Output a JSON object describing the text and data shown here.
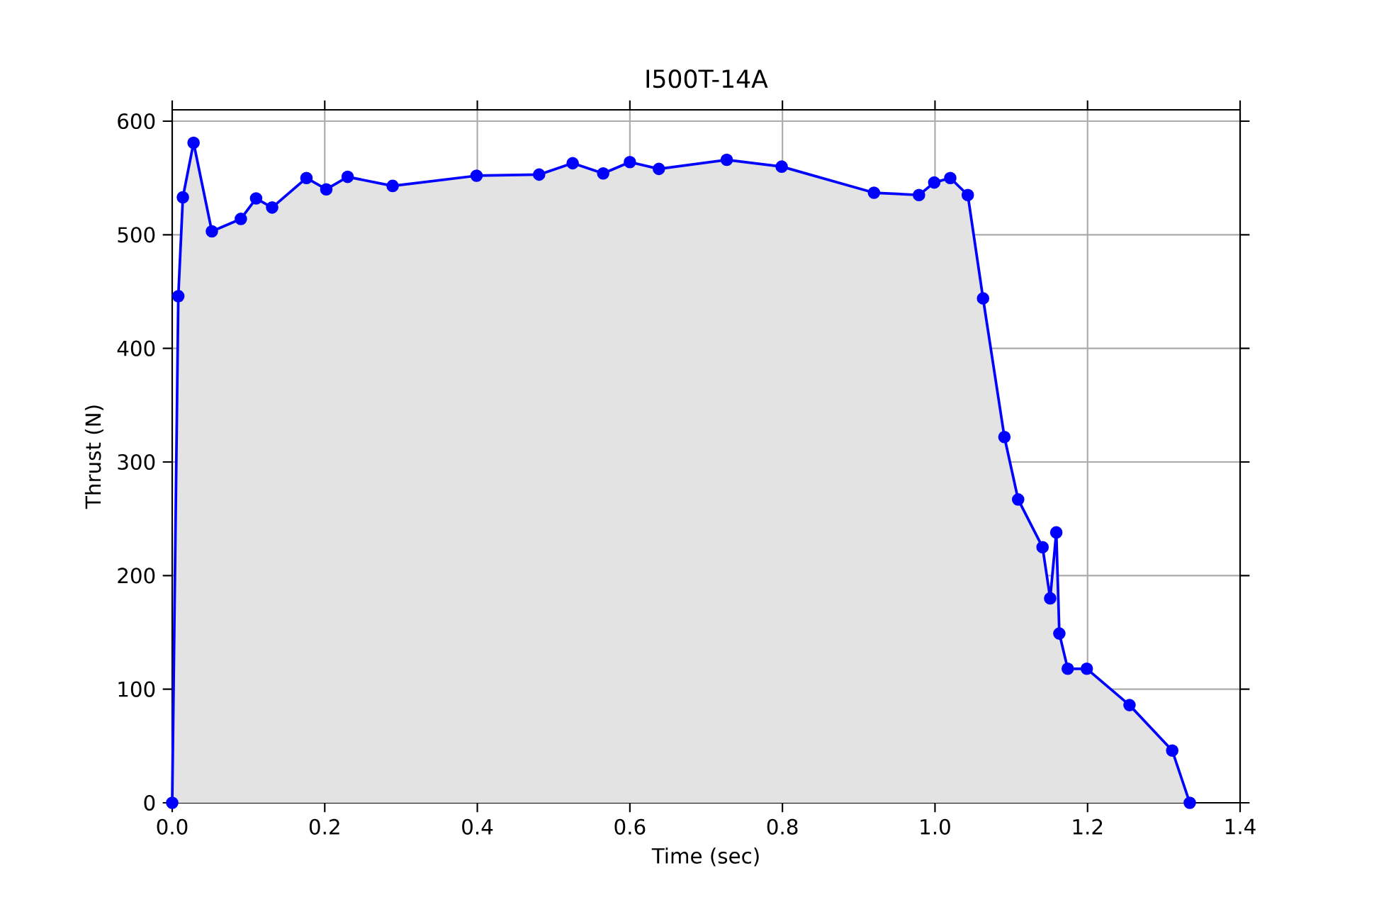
{
  "chart_data": {
    "type": "area",
    "title": "I500T-14A",
    "xlabel": "Time (sec)",
    "ylabel": "Thrust (N)",
    "x": [
      0,
      0.008,
      0.014,
      0.028,
      0.052,
      0.09,
      0.11,
      0.131,
      0.176,
      0.202,
      0.23,
      0.289,
      0.399,
      0.481,
      0.525,
      0.565,
      0.6,
      0.638,
      0.727,
      0.799,
      0.92,
      0.979,
      0.999,
      1.02,
      1.043,
      1.063,
      1.091,
      1.109,
      1.141,
      1.151,
      1.159,
      1.163,
      1.174,
      1.199,
      1.255,
      1.311,
      1.334
    ],
    "series": [
      {
        "color": "#0000ff",
        "values": [
          0,
          446,
          533,
          581,
          503,
          514,
          532,
          524,
          550,
          540,
          551,
          543,
          552,
          553,
          563,
          554,
          564,
          558,
          566,
          560,
          537,
          535,
          546,
          550,
          535,
          444,
          322,
          267,
          225,
          180,
          238,
          149,
          118,
          118,
          86,
          46,
          0
        ]
      }
    ],
    "xlim": [
      0,
      1.4
    ],
    "ylim": [
      0,
      610
    ],
    "xticks": [
      {
        "value": 0,
        "label": "0.0"
      },
      {
        "value": 0.2,
        "label": "0.2"
      },
      {
        "value": 0.4,
        "label": "0.4"
      },
      {
        "value": 0.6,
        "label": "0.6"
      },
      {
        "value": 0.8,
        "label": "0.8"
      },
      {
        "value": 1.0,
        "label": "1.0"
      },
      {
        "value": 1.2,
        "label": "1.2"
      },
      {
        "value": 1.4,
        "label": "1.4"
      }
    ],
    "yticks": [
      0,
      100,
      200,
      300,
      400,
      500,
      600
    ],
    "grid": true,
    "marker": "circle",
    "line_style": "solid"
  }
}
